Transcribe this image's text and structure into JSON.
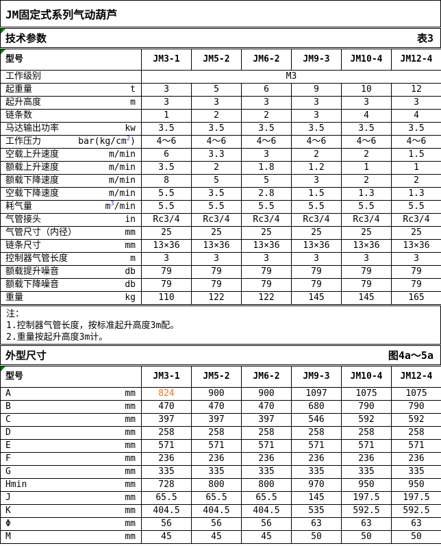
{
  "title": "JM固定式系列气动葫芦",
  "colors": {
    "border": "#000000",
    "background": "#FFFFFF",
    "accent_orange": "#F07420",
    "superscript_blue": "#3333CC",
    "indicator_green": "#008000"
  },
  "icons": {
    "error_indicator": "green-corner-triangle"
  },
  "notes": {
    "title": "注：",
    "items": [
      "1.控制器气管长度，按标准起升高度3m配。",
      "2.重量按起升高度3m计。"
    ]
  },
  "sections": [
    {
      "heading": "技术参数",
      "ref": "表3",
      "table": {
        "corner_label": "型号",
        "columns": [
          "JM3-1",
          "JM5-2",
          "JM6-2",
          "JM9-3",
          "JM10-4",
          "JM12-4"
        ],
        "rows": [
          {
            "label": "工作级别",
            "unit": "",
            "merged_value": "M3"
          },
          {
            "label": "起重量",
            "unit": "t",
            "values": [
              "3",
              "5",
              "6",
              "9",
              "10",
              "12"
            ]
          },
          {
            "label": "起升高度",
            "unit": "m",
            "values": [
              "3",
              "3",
              "3",
              "3",
              "3",
              "3"
            ]
          },
          {
            "label": "链条数",
            "unit": "",
            "values": [
              "1",
              "2",
              "2",
              "3",
              "4",
              "4"
            ]
          },
          {
            "label": "马达输出功率",
            "unit": "kw",
            "values": [
              "3.5",
              "3.5",
              "3.5",
              "3.5",
              "3.5",
              "3.5"
            ]
          },
          {
            "label": "工作压力",
            "unit": "bar(kg/cm",
            "unit_sup": "2",
            "unit_post": ")",
            "values": [
              "4～6",
              "4～6",
              "4～6",
              "4～6",
              "4～6",
              "4～6"
            ]
          },
          {
            "label": "空载上升速度",
            "unit": "m/min",
            "values": [
              "6",
              "3.3",
              "3",
              "2",
              "2",
              "1.5"
            ]
          },
          {
            "label": "额载上升速度",
            "unit": "m/min",
            "values": [
              "3.5",
              "2",
              "1.8",
              "1.2",
              "1",
              "1"
            ]
          },
          {
            "label": "额载下降速度",
            "unit": "m/min",
            "values": [
              "8",
              "5",
              "5",
              "3",
              "2",
              "2"
            ]
          },
          {
            "label": "空载下降速度",
            "unit": "m/min",
            "values": [
              "5.5",
              "3.5",
              "2.8",
              "1.5",
              "1.3",
              "1.3"
            ]
          },
          {
            "label": "耗气量",
            "unit": "m",
            "unit_sup": "3",
            "unit_post": "/min",
            "values": [
              "5.5",
              "5.5",
              "5.5",
              "5.5",
              "5.5",
              "5.5"
            ]
          },
          {
            "label": "气管接头",
            "unit": "in",
            "values": [
              "Rc3/4",
              "Rc3/4",
              "Rc3/4",
              "Rc3/4",
              "Rc3/4",
              "Rc3/4"
            ]
          },
          {
            "label": "气管尺寸（内径）",
            "unit": "mm",
            "values": [
              "25",
              "25",
              "25",
              "25",
              "25",
              "25"
            ]
          },
          {
            "label": "链条尺寸",
            "unit": "mm",
            "values": [
              "13×36",
              "13×36",
              "13×36",
              "13×36",
              "13×36",
              "13×36"
            ]
          },
          {
            "label": "控制器气管长度",
            "unit": "m",
            "values": [
              "3",
              "3",
              "3",
              "3",
              "3",
              "3"
            ]
          },
          {
            "label": "额载提升噪音",
            "unit": "db",
            "values": [
              "79",
              "79",
              "79",
              "79",
              "79",
              "79"
            ]
          },
          {
            "label": "额载下降噪音",
            "unit": "db",
            "values": [
              "79",
              "79",
              "79",
              "79",
              "79",
              "79"
            ]
          },
          {
            "label": "重量",
            "unit": "kg",
            "values": [
              "110",
              "122",
              "122",
              "145",
              "145",
              "165"
            ]
          }
        ]
      }
    },
    {
      "heading": "外型尺寸",
      "ref": "图4a～5a",
      "table": {
        "corner_label": "型号",
        "columns": [
          "JM3-1",
          "JM5-2",
          "JM6-2",
          "JM9-3",
          "JM10-4",
          "JM12-4"
        ],
        "rows": [
          {
            "label": "A",
            "unit": "mm",
            "values": [
              {
                "text": "824",
                "color": "#F07420"
              },
              "900",
              "900",
              "1097",
              "1075",
              "1075"
            ]
          },
          {
            "label": "B",
            "unit": "mm",
            "values": [
              "470",
              "470",
              "470",
              "680",
              "790",
              "790"
            ]
          },
          {
            "label": "C",
            "unit": "mm",
            "values": [
              "397",
              "397",
              "397",
              "546",
              "592",
              "592"
            ]
          },
          {
            "label": "D",
            "unit": "mm",
            "values": [
              "258",
              "258",
              "258",
              "258",
              "258",
              "258"
            ]
          },
          {
            "label": "E",
            "unit": "mm",
            "values": [
              "571",
              "571",
              "571",
              "571",
              "571",
              "571"
            ]
          },
          {
            "label": "F",
            "unit": "mm",
            "values": [
              "236",
              "236",
              "236",
              "236",
              "236",
              "236"
            ]
          },
          {
            "label": "G",
            "unit": "mm",
            "values": [
              "335",
              "335",
              "335",
              "335",
              "335",
              "335"
            ]
          },
          {
            "label": "Hmin",
            "unit": "mm",
            "values": [
              "728",
              "800",
              "800",
              "970",
              "950",
              "950"
            ]
          },
          {
            "label": "J",
            "unit": "mm",
            "values": [
              "65.5",
              "65.5",
              "65.5",
              "145",
              "197.5",
              "197.5"
            ]
          },
          {
            "label": "K",
            "unit": "mm",
            "values": [
              "404.5",
              "404.5",
              "404.5",
              "535",
              "592.5",
              "592.5"
            ]
          },
          {
            "label": "Φ",
            "unit": "mm",
            "values": [
              "56",
              "56",
              "56",
              "63",
              "63",
              "63"
            ]
          },
          {
            "label": "M",
            "unit": "mm",
            "values": [
              "45",
              "45",
              "45",
              "50",
              "50",
              "50"
            ]
          }
        ]
      }
    }
  ]
}
